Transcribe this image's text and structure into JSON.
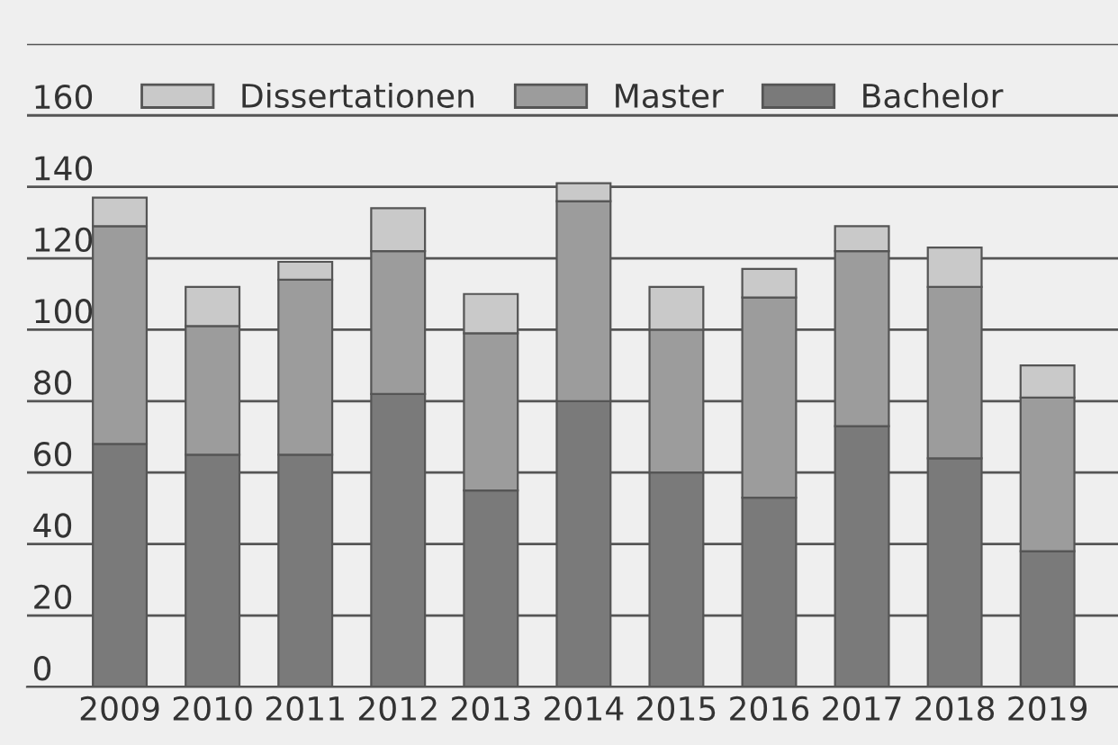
{
  "chart_data": {
    "type": "bar",
    "stacked": true,
    "categories": [
      "2009",
      "2010",
      "2011",
      "2012",
      "2013",
      "2014",
      "2015",
      "2016",
      "2017",
      "2018",
      "2019"
    ],
    "series": [
      {
        "name": "Bachelor",
        "color": "#7a7a7a",
        "values": [
          68,
          65,
          65,
          82,
          55,
          80,
          60,
          53,
          73,
          64,
          38
        ]
      },
      {
        "name": "Master",
        "color": "#9c9c9c",
        "values": [
          61,
          36,
          49,
          40,
          44,
          56,
          40,
          56,
          49,
          48,
          43
        ]
      },
      {
        "name": "Dissertationen",
        "color": "#c9c9c9",
        "values": [
          8,
          11,
          5,
          12,
          11,
          5,
          12,
          8,
          7,
          11,
          9
        ]
      }
    ],
    "ylim": [
      0,
      180
    ],
    "yticks": [
      0,
      20,
      40,
      60,
      80,
      100,
      120,
      140,
      160,
      {
        "value": 180,
        "label": null
      }
    ],
    "grid": "y",
    "legend": "top"
  }
}
